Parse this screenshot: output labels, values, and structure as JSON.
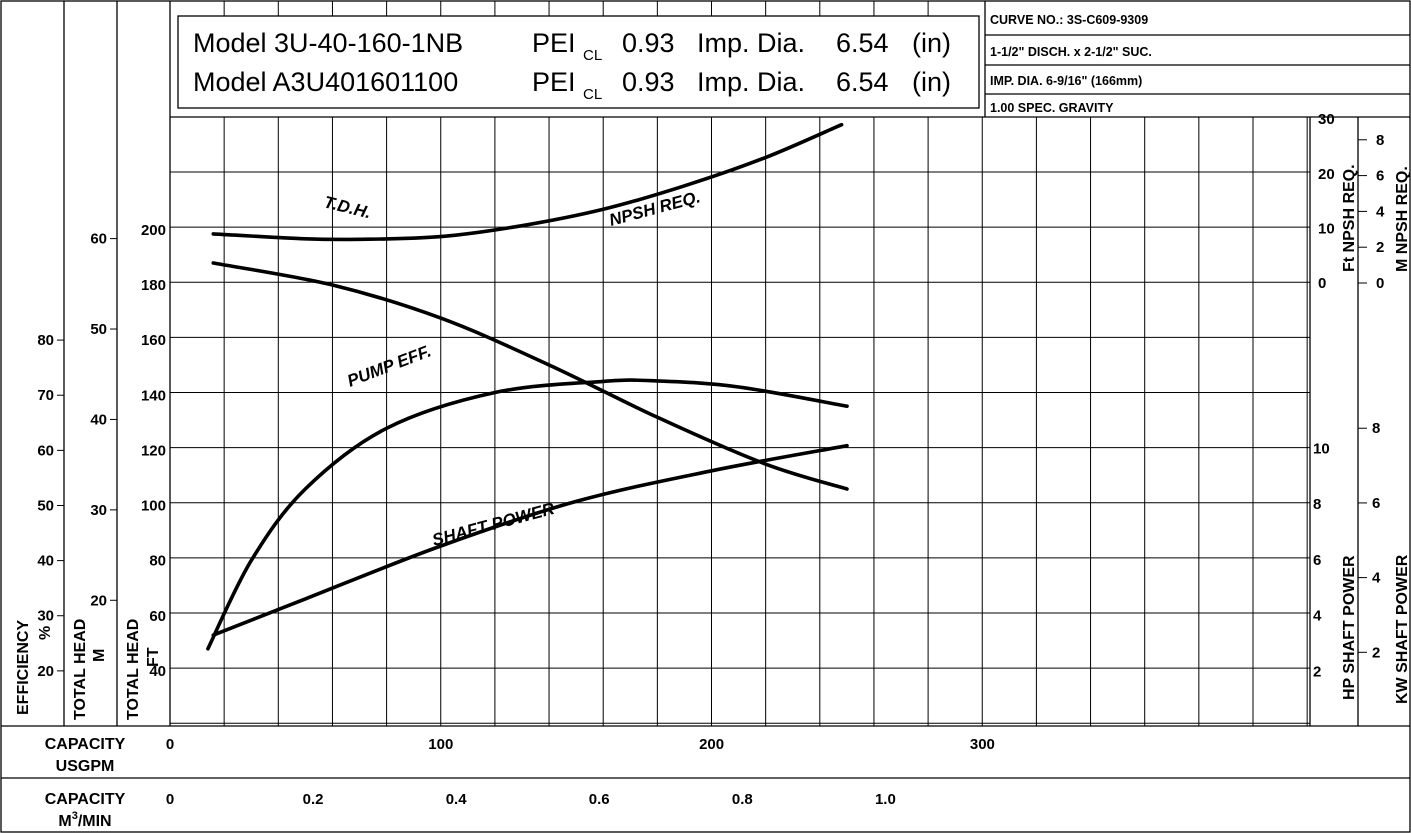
{
  "title_block": {
    "line1": {
      "model": "Model 3U-40-160-1NB",
      "pei": "PEI",
      "pei_sub": "CL",
      "pei_value": "0.93",
      "imp": "Imp. Dia.",
      "imp_value": "6.54",
      "imp_unit": "(in)"
    },
    "line2": {
      "model": "Model A3U401601100",
      "pei": "PEI",
      "pei_sub": "CL",
      "pei_value": "0.93",
      "imp": "Imp. Dia.",
      "imp_value": "6.54",
      "imp_unit": "(in)"
    }
  },
  "info_block": [
    "CURVE NO.: 3S-C609-9309",
    "1-1/2\" DISCH. x 2-1/2\" SUC.",
    "IMP. DIA. 6-9/16\" (166mm)",
    "1.00 SPEC. GRAVITY"
  ],
  "axis_labels": {
    "efficiency_1": "EFFICIENCY",
    "efficiency_2": "%",
    "head_m_1": "TOTAL HEAD",
    "head_m_2": "M",
    "head_ft_1": "TOTAL HEAD",
    "head_ft_2": "FT",
    "npsh_ft": "Ft NPSH REQ.",
    "npsh_m": "M NPSH REQ.",
    "hp": "HP SHAFT POWER",
    "kw": "KW SHAFT POWER",
    "cap_usgpm_1": "CAPACITY",
    "cap_usgpm_2": "USGPM",
    "cap_m3_1": "CAPACITY",
    "cap_m3_2a": "M",
    "cap_m3_2b": "3",
    "cap_m3_2c": "/MIN"
  },
  "chart_data": {
    "type": "line",
    "x_unit": "USGPM",
    "xlim": [
      0,
      420
    ],
    "ticks": {
      "usgpm": [
        "0",
        "100",
        "200",
        "300"
      ],
      "m3min": [
        "0",
        "0.2",
        "0.4",
        "0.6",
        "0.8",
        "1.0"
      ],
      "head_ft": [
        "40",
        "60",
        "80",
        "100",
        "120",
        "140",
        "160",
        "180",
        "200"
      ],
      "head_m": [
        "20",
        "30",
        "40",
        "50",
        "60"
      ],
      "efficiency": [
        "20",
        "30",
        "40",
        "50",
        "60",
        "70",
        "80"
      ],
      "npsh_ft": [
        "0",
        "10",
        "20",
        "30"
      ],
      "npsh_m": [
        "0",
        "2",
        "4",
        "6",
        "8"
      ],
      "hp": [
        "2",
        "4",
        "6",
        "8",
        "10"
      ],
      "kw": [
        "2",
        "4",
        "6",
        "8"
      ]
    },
    "series": [
      {
        "name": "T.D.H.",
        "axis": "head_ft",
        "x": [
          16,
          60,
          100,
          140,
          180,
          220,
          250
        ],
        "y": [
          188,
          180,
          168,
          151,
          132,
          115,
          106
        ]
      },
      {
        "name": "NPSH REQ.",
        "axis": "npsh_ft",
        "x": [
          16,
          50,
          70,
          100,
          130,
          160,
          190,
          220,
          248
        ],
        "y": [
          9,
          8.1,
          8,
          8.5,
          10.5,
          13.5,
          17.8,
          23,
          29
        ]
      },
      {
        "name": "PUMP EFF.",
        "axis": "efficiency",
        "x": [
          14,
          30,
          50,
          80,
          120,
          160,
          180,
          210,
          250
        ],
        "y": [
          24,
          40,
          53,
          64,
          70.5,
          72.5,
          72.6,
          71.5,
          68
        ]
      },
      {
        "name": "SHAFT POWER",
        "axis": "hp",
        "x": [
          16,
          50,
          100,
          150,
          200,
          250
        ],
        "y": [
          3.3,
          4.6,
          6.5,
          8.1,
          9.2,
          10.1
        ]
      }
    ]
  }
}
